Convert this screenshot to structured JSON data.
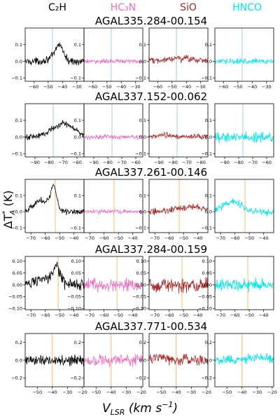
{
  "chart_data": {
    "type": "line",
    "molecules": [
      {
        "name": "C$_2$H",
        "label": "C2H",
        "color": "#000000"
      },
      {
        "name": "HC$_3$N",
        "label": "HC3N",
        "color": "#f06bbf"
      },
      {
        "name": "SiO",
        "label": "SiO",
        "color": "#a52a2a"
      },
      {
        "name": "HNCO",
        "label": "HNCO",
        "color": "#00e5ee"
      }
    ],
    "ylabel": "ΔT*A (K)",
    "xlabel": "VLSR (km s-1)",
    "sources": [
      {
        "name": "AGAL335.284-00.154",
        "xlim": [
          -66,
          -25
        ],
        "xticks": [
          -60,
          -50,
          -40,
          -30
        ],
        "ylim": [
          -0.12,
          0.2
        ],
        "yticks": [
          -0.1,
          0.0,
          0.1
        ],
        "ytick_labels": [
          "-0.1",
          "0.0",
          "0.1"
        ],
        "vline": -47,
        "vline_color": "#a6cee3",
        "series": [
          {
            "molecule": "C2H",
            "amp": 0.02,
            "profile": [
              [
                -48,
                0.02,
                3
              ],
              [
                -42,
                0.1,
                2.5
              ]
            ]
          },
          {
            "molecule": "HC3N",
            "amp": 0.012,
            "profile": []
          },
          {
            "molecule": "SiO",
            "amp": 0.018,
            "profile": [
              [
                -45,
                0.015,
                12
              ]
            ]
          },
          {
            "molecule": "HNCO",
            "amp": 0.014,
            "profile": []
          }
        ]
      },
      {
        "name": "AGAL337.152-00.062",
        "xlim": [
          -97,
          -55
        ],
        "xticks": [
          -90,
          -80,
          -70,
          -60
        ],
        "ylim": [
          -0.12,
          0.2
        ],
        "yticks": [
          -0.1,
          0.0,
          0.1
        ],
        "ytick_labels": [
          "-0.1",
          "0.0",
          "0.1"
        ],
        "vline": -77,
        "vline_color": "#a6cee3",
        "series": [
          {
            "molecule": "C2H",
            "amp": 0.018,
            "profile": [
              [
                -70,
                0.08,
                8
              ]
            ]
          },
          {
            "molecule": "HC3N",
            "amp": 0.012,
            "profile": []
          },
          {
            "molecule": "SiO",
            "amp": 0.016,
            "profile": [
              [
                -85,
                0.012,
                5
              ]
            ]
          },
          {
            "molecule": "HNCO",
            "amp": 0.028,
            "profile": []
          }
        ]
      },
      {
        "name": "AGAL337.261-00.146",
        "xlim": [
          -74,
          -33
        ],
        "xticks": [
          -70,
          -60,
          -50,
          -40
        ],
        "ylim": [
          -0.13,
          0.2
        ],
        "yticks": [
          -0.1,
          0.0,
          0.1
        ],
        "ytick_labels": [
          "-0.1",
          "0.0",
          "0.1"
        ],
        "vline": -53,
        "vline_color": "#ffb86b",
        "series": [
          {
            "molecule": "C2H",
            "amp": 0.018,
            "profile": [
              [
                -62,
                0.07,
                6
              ],
              [
                -54,
                0.13,
                2
              ]
            ]
          },
          {
            "molecule": "HC3N",
            "amp": 0.012,
            "profile": []
          },
          {
            "molecule": "SiO",
            "amp": 0.018,
            "profile": [
              [
                -45,
                0.03,
                10
              ]
            ]
          },
          {
            "molecule": "HNCO",
            "amp": 0.022,
            "profile": [
              [
                -62,
                0.06,
                6
              ]
            ]
          }
        ]
      },
      {
        "name": "AGAL337.284-00.159",
        "xlim": [
          -74,
          -33
        ],
        "xticks": [
          -70,
          -60,
          -50,
          -40
        ],
        "ylim": [
          -0.105,
          0.12
        ],
        "yticks": [
          -0.1,
          -0.05,
          0.0,
          0.05,
          0.1
        ],
        "ytick_labels": [
          "-0.10",
          "-0.05",
          "0.00",
          "0.05",
          "0.10"
        ],
        "vline": -51,
        "vline_color": "#ffb86b",
        "series": [
          {
            "molecule": "C2H",
            "amp": 0.022,
            "profile": [
              [
                -62,
                0.025,
                6
              ],
              [
                -52,
                0.07,
                2.5
              ]
            ]
          },
          {
            "molecule": "HC3N",
            "amp": 0.025,
            "profile": []
          },
          {
            "molecule": "SiO",
            "amp": 0.03,
            "profile": []
          },
          {
            "molecule": "HNCO",
            "amp": 0.025,
            "profile": []
          }
        ]
      },
      {
        "name": "AGAL337.771-00.534",
        "xlim": [
          -58,
          -19
        ],
        "xticks": [
          -50,
          -40,
          -30,
          -20
        ],
        "ylim": [
          -0.3,
          0.3
        ],
        "yticks": [
          -0.2,
          0.0,
          0.2
        ],
        "ytick_labels": [
          "-0.2",
          "0.0",
          "0.2"
        ],
        "vline": -40,
        "vline_color": "#ffb86b",
        "series": [
          {
            "molecule": "C2H",
            "amp": 0.06,
            "profile": []
          },
          {
            "molecule": "HC3N",
            "amp": 0.06,
            "profile": []
          },
          {
            "molecule": "SiO",
            "amp": 0.06,
            "profile": [
              [
                -50,
                0.04,
                4
              ]
            ]
          },
          {
            "molecule": "HNCO",
            "amp": 0.05,
            "profile": [
              [
                -30,
                0.03,
                6
              ]
            ]
          }
        ]
      }
    ]
  },
  "labels": {
    "col_headers": [
      "C₂H",
      "HC₃N",
      "SiO",
      "HNCO"
    ],
    "ylabel_main": "ΔT",
    "ylabel_sub": "A",
    "ylabel_sup": "*",
    "ylabel_unit": " (K)",
    "xlabel_main": "V",
    "xlabel_sub": "LSR",
    "xlabel_unit": " (km s",
    "xlabel_sup": "−1",
    "xlabel_close": ")"
  }
}
